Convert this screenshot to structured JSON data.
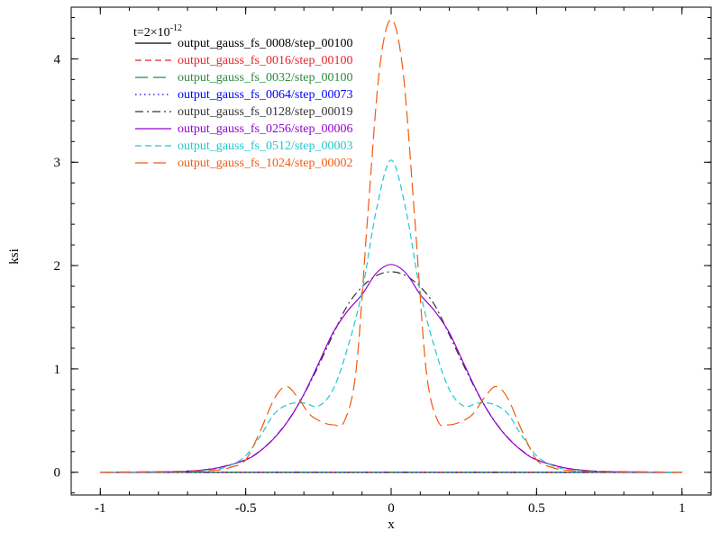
{
  "chart_data": {
    "type": "line",
    "title": "",
    "annotation": {
      "base": "t=2×10",
      "exponent": "-12"
    },
    "xlabel": "x",
    "ylabel": "ksi",
    "xlim": [
      -1.1,
      1.1
    ],
    "ylim": [
      -0.22,
      4.5
    ],
    "xticks": [
      {
        "value": -1,
        "label": "-1"
      },
      {
        "value": -0.5,
        "label": "-0.5"
      },
      {
        "value": 0,
        "label": "0"
      },
      {
        "value": 0.5,
        "label": "0.5"
      },
      {
        "value": 1,
        "label": "1"
      }
    ],
    "yticks": [
      {
        "value": 0,
        "label": "0"
      },
      {
        "value": 1,
        "label": "1"
      },
      {
        "value": 2,
        "label": "2"
      },
      {
        "value": 3,
        "label": "3"
      },
      {
        "value": 4,
        "label": "4"
      }
    ],
    "grid": false,
    "legend_position": "top-left",
    "series": [
      {
        "name": "output_gauss_fs_0008/step_00100",
        "color": "#000000",
        "dash": "solid",
        "x": [
          -1,
          0,
          1
        ],
        "y": [
          0,
          0,
          0
        ]
      },
      {
        "name": "output_gauss_fs_0016/step_00100",
        "color": "#e8262a",
        "dash": "dashed",
        "x": [
          -1,
          0,
          1
        ],
        "y": [
          0,
          0,
          0
        ]
      },
      {
        "name": "output_gauss_fs_0032/step_00100",
        "color": "#2b8a3e",
        "dash": "longdash",
        "x": [
          -1,
          0,
          1
        ],
        "y": [
          0,
          0,
          0
        ]
      },
      {
        "name": "output_gauss_fs_0064/step_00073",
        "color": "#0000ff",
        "dash": "dotted",
        "x": [
          -1,
          0,
          1
        ],
        "y": [
          0,
          0,
          0
        ]
      },
      {
        "name": "output_gauss_fs_0128/step_00019",
        "color": "#333333",
        "dash": "dashdot",
        "x": [
          -1,
          -0.8,
          -0.7,
          -0.6,
          -0.5,
          -0.45,
          -0.4,
          -0.35,
          -0.3,
          -0.25,
          -0.2,
          -0.15,
          -0.1,
          -0.05,
          0,
          0.05,
          0.1,
          0.15,
          0.2,
          0.25,
          0.3,
          0.35,
          0.4,
          0.45,
          0.5,
          0.6,
          0.7,
          0.8,
          1
        ],
        "y": [
          0,
          0.003,
          0.011,
          0.041,
          0.122,
          0.209,
          0.339,
          0.518,
          0.751,
          1.03,
          1.331,
          1.616,
          1.794,
          1.903,
          1.94,
          1.903,
          1.794,
          1.616,
          1.331,
          1.03,
          0.751,
          0.518,
          0.339,
          0.209,
          0.122,
          0.041,
          0.011,
          0.003,
          0
        ]
      },
      {
        "name": "output_gauss_fs_0256/step_00006",
        "color": "#9400d3",
        "dash": "solid",
        "x": [
          -1,
          -0.8,
          -0.7,
          -0.6,
          -0.5,
          -0.45,
          -0.4,
          -0.35,
          -0.3,
          -0.25,
          -0.2,
          -0.15,
          -0.1,
          -0.05,
          0,
          0.05,
          0.1,
          0.15,
          0.2,
          0.25,
          0.3,
          0.35,
          0.4,
          0.45,
          0.5,
          0.6,
          0.7,
          0.8,
          1
        ],
        "y": [
          0,
          0.003,
          0.011,
          0.041,
          0.12,
          0.207,
          0.336,
          0.515,
          0.755,
          1.05,
          1.35,
          1.56,
          1.72,
          1.93,
          2.01,
          1.93,
          1.72,
          1.56,
          1.35,
          1.05,
          0.755,
          0.515,
          0.336,
          0.207,
          0.12,
          0.041,
          0.011,
          0.003,
          0
        ]
      },
      {
        "name": "output_gauss_fs_0512/step_00003",
        "color": "#20c8d0",
        "dash": "dashed",
        "x": [
          -1,
          -0.7,
          -0.6,
          -0.55,
          -0.5,
          -0.45,
          -0.4,
          -0.35,
          -0.3,
          -0.25,
          -0.2,
          -0.15,
          -0.1,
          -0.05,
          0,
          0.05,
          0.1,
          0.15,
          0.2,
          0.25,
          0.3,
          0.35,
          0.4,
          0.45,
          0.5,
          0.55,
          0.6,
          0.7,
          1
        ],
        "y": [
          0,
          0.01,
          0.03,
          0.07,
          0.16,
          0.35,
          0.57,
          0.66,
          0.67,
          0.64,
          0.8,
          1.2,
          1.75,
          2.55,
          3.02,
          2.55,
          1.75,
          1.2,
          0.8,
          0.64,
          0.67,
          0.66,
          0.57,
          0.35,
          0.16,
          0.07,
          0.03,
          0.01,
          0
        ]
      },
      {
        "name": "output_gauss_fs_1024/step_00002",
        "color": "#f05a10",
        "dash": "longdash",
        "x": [
          -1,
          -0.7,
          -0.6,
          -0.55,
          -0.5,
          -0.45,
          -0.4,
          -0.36,
          -0.32,
          -0.28,
          -0.24,
          -0.2,
          -0.16,
          -0.12,
          -0.08,
          -0.04,
          0,
          0.04,
          0.08,
          0.12,
          0.16,
          0.2,
          0.24,
          0.28,
          0.32,
          0.36,
          0.4,
          0.45,
          0.5,
          0.55,
          0.6,
          0.7,
          1
        ],
        "y": [
          0,
          0.01,
          0.02,
          0.05,
          0.12,
          0.4,
          0.72,
          0.83,
          0.72,
          0.56,
          0.49,
          0.46,
          0.5,
          1.0,
          2.5,
          3.9,
          4.38,
          3.9,
          2.5,
          1.0,
          0.5,
          0.46,
          0.49,
          0.56,
          0.72,
          0.83,
          0.72,
          0.4,
          0.12,
          0.05,
          0.02,
          0.01,
          0
        ]
      }
    ]
  }
}
